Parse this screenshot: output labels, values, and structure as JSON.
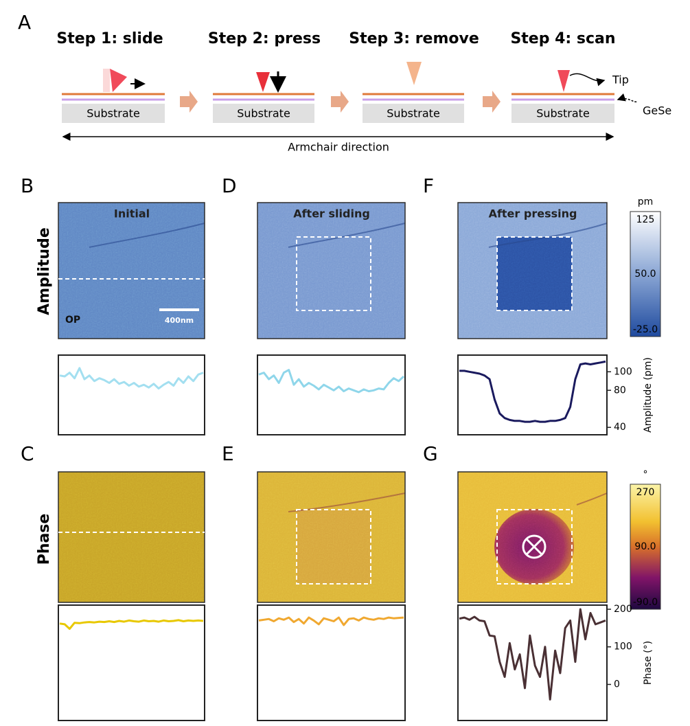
{
  "panel_labels": [
    "A",
    "B",
    "C",
    "D",
    "E",
    "F",
    "G"
  ],
  "schematic": {
    "steps": [
      "Step 1: slide",
      "Step 2: press",
      "Step 3: remove",
      "Step 4: scan"
    ],
    "substrates": [
      "Substrate",
      "Substrate",
      "Substrate",
      "Substrate"
    ],
    "tip_label": "Tip",
    "material_label": "GeSe",
    "direction_label": "Armchair direction"
  },
  "row_labels": [
    "Amplitude",
    "Phase"
  ],
  "panel_titles": [
    "Initial",
    "After sliding",
    "After pressing"
  ],
  "sample_label": "OP",
  "scale_bar": "400nm",
  "colorbars": [
    {
      "unit": "pm",
      "lim": [
        -25,
        125
      ],
      "ticks": [
        125,
        {
          "value": 50,
          "label": "50.0"
        },
        {
          "value": -25,
          "label": "-25.0"
        }
      ]
    },
    {
      "unit": "°",
      "lim": [
        -90,
        270
      ],
      "ticks": [
        270,
        {
          "value": 90,
          "label": "90.0"
        },
        {
          "value": -90,
          "label": "-90.0"
        }
      ]
    }
  ],
  "profiles": {
    "amplitude": {
      "axis_label": "Amplitude (pm)",
      "ylim": [
        32,
        118
      ],
      "yticks": [
        100,
        80,
        40
      ],
      "series": [
        {
          "color": "#a3dff0",
          "values": [
            96,
            95,
            99,
            93,
            104,
            92,
            96,
            90,
            93,
            91,
            88,
            92,
            87,
            89,
            85,
            88,
            84,
            86,
            83,
            87,
            82,
            86,
            89,
            85,
            93,
            88,
            95,
            90,
            97,
            99
          ]
        },
        {
          "color": "#8fd6ea",
          "values": [
            97,
            99,
            92,
            96,
            88,
            99,
            102,
            86,
            92,
            84,
            88,
            85,
            81,
            86,
            83,
            80,
            84,
            79,
            82,
            80,
            78,
            81,
            79,
            80,
            82,
            81,
            88,
            93,
            90,
            95
          ]
        },
        {
          "color": "#1a1a5e",
          "values": [
            101,
            101,
            100,
            99,
            98,
            96,
            92,
            70,
            55,
            50,
            48,
            47,
            47,
            46,
            46,
            47,
            46,
            46,
            47,
            47,
            48,
            50,
            62,
            92,
            108,
            109,
            108,
            109,
            110,
            111
          ]
        }
      ]
    },
    "phase": {
      "axis_label": "Phase (°)",
      "ylim": [
        -96,
        211
      ],
      "yticks": [
        200,
        100,
        0
      ],
      "series": [
        {
          "color": "#e8c800",
          "values": [
            162,
            160,
            148,
            164,
            163,
            165,
            166,
            165,
            167,
            166,
            168,
            166,
            169,
            167,
            170,
            168,
            167,
            170,
            168,
            169,
            167,
            170,
            168,
            169,
            171,
            168,
            170,
            169,
            170,
            169
          ]
        },
        {
          "color": "#f0a830",
          "values": [
            170,
            172,
            174,
            168,
            176,
            172,
            178,
            166,
            174,
            162,
            178,
            170,
            160,
            176,
            172,
            168,
            178,
            158,
            174,
            176,
            170,
            178,
            174,
            172,
            176,
            174,
            178,
            176,
            177,
            178
          ]
        },
        {
          "color": "#4a3034",
          "values": [
            175,
            178,
            172,
            180,
            170,
            168,
            130,
            128,
            60,
            20,
            110,
            40,
            80,
            -10,
            130,
            50,
            20,
            100,
            -40,
            90,
            30,
            150,
            170,
            60,
            200,
            120,
            190,
            160,
            165,
            170
          ]
        }
      ]
    }
  }
}
